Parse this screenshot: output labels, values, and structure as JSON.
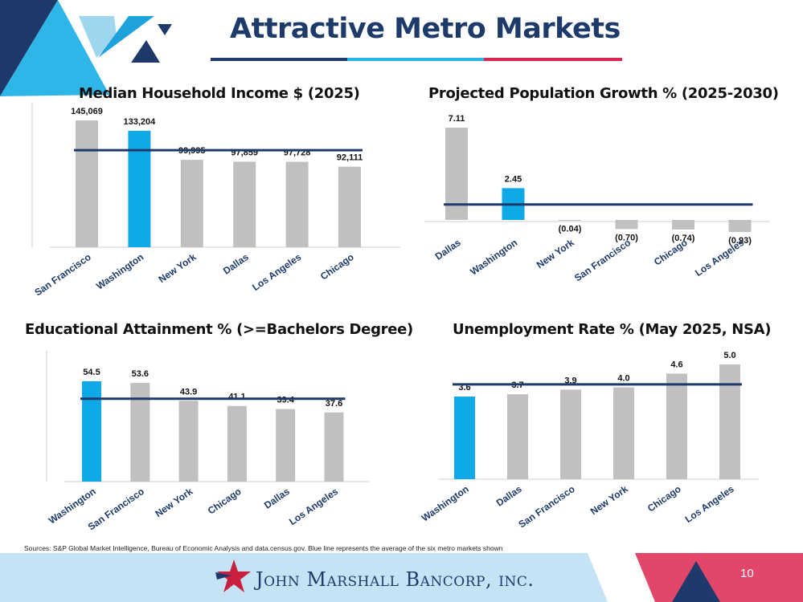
{
  "title": "Attractive Metro Markets",
  "source_note": "Sources: S&P Global Market Intelligence, Bureau of Economic Analysis and data.census.gov. Blue line represents the average of the six metro markets shown",
  "footer": {
    "company": "John Marshall Bancorp, inc.",
    "page_number": "10"
  },
  "colors": {
    "navy": "#1d3a6b",
    "highlight": "#10a9e8",
    "bar": "#c0c0c0",
    "rule_blue": "#2ab3e6",
    "rule_red": "#d7284f"
  },
  "chart_data": [
    {
      "id": "income",
      "type": "bar",
      "title": "Median Household Income $ (2025)",
      "categories": [
        "San Francisco",
        "Washington",
        "New York",
        "Dallas",
        "Los Angeles",
        "Chicago"
      ],
      "values": [
        145069,
        133204,
        99995,
        97859,
        97728,
        92111
      ],
      "labels": [
        "145,069",
        "133,204",
        "99,995",
        "97,859",
        "97,728",
        "92,111"
      ],
      "highlight": "Washington",
      "average": 110994,
      "ylim": [
        0,
        145069
      ]
    },
    {
      "id": "population",
      "type": "bar",
      "title": "Projected Population Growth % (2025-2030)",
      "categories": [
        "Dallas",
        "Washington",
        "New York",
        "San Francisco",
        "Chicago",
        "Los Angeles"
      ],
      "values": [
        7.11,
        2.45,
        -0.04,
        -0.7,
        -0.74,
        -0.93
      ],
      "labels": [
        "7.11",
        "2.45",
        "(0.04)",
        "(0.70)",
        "(0.74)",
        "(0.93)"
      ],
      "highlight": "Washington",
      "average": 1.19,
      "ylim": [
        -0.93,
        7.11
      ]
    },
    {
      "id": "education",
      "type": "bar",
      "title": "Educational Attainment % (>=Bachelors Degree)",
      "categories": [
        "Washington",
        "San Francisco",
        "New York",
        "Chicago",
        "Dallas",
        "Los Angeles"
      ],
      "values": [
        54.5,
        53.6,
        43.9,
        41.1,
        39.4,
        37.6
      ],
      "labels": [
        "54.5",
        "53.6",
        "43.9",
        "41.1",
        "39.4",
        "37.6"
      ],
      "highlight": "Washington",
      "average": 45.0,
      "ylim": [
        0,
        54.5
      ]
    },
    {
      "id": "unemployment",
      "type": "bar",
      "title": "Unemployment Rate % (May 2025, NSA)",
      "categories": [
        "Washington",
        "Dallas",
        "San Francisco",
        "New York",
        "Chicago",
        "Los Angeles"
      ],
      "values": [
        3.6,
        3.7,
        3.9,
        4.0,
        4.6,
        5.0
      ],
      "labels": [
        "3.6",
        "3.7",
        "3.9",
        "4.0",
        "4.6",
        "5.0"
      ],
      "highlight": "Washington",
      "average": 4.13,
      "ylim": [
        0,
        5.0
      ]
    }
  ]
}
